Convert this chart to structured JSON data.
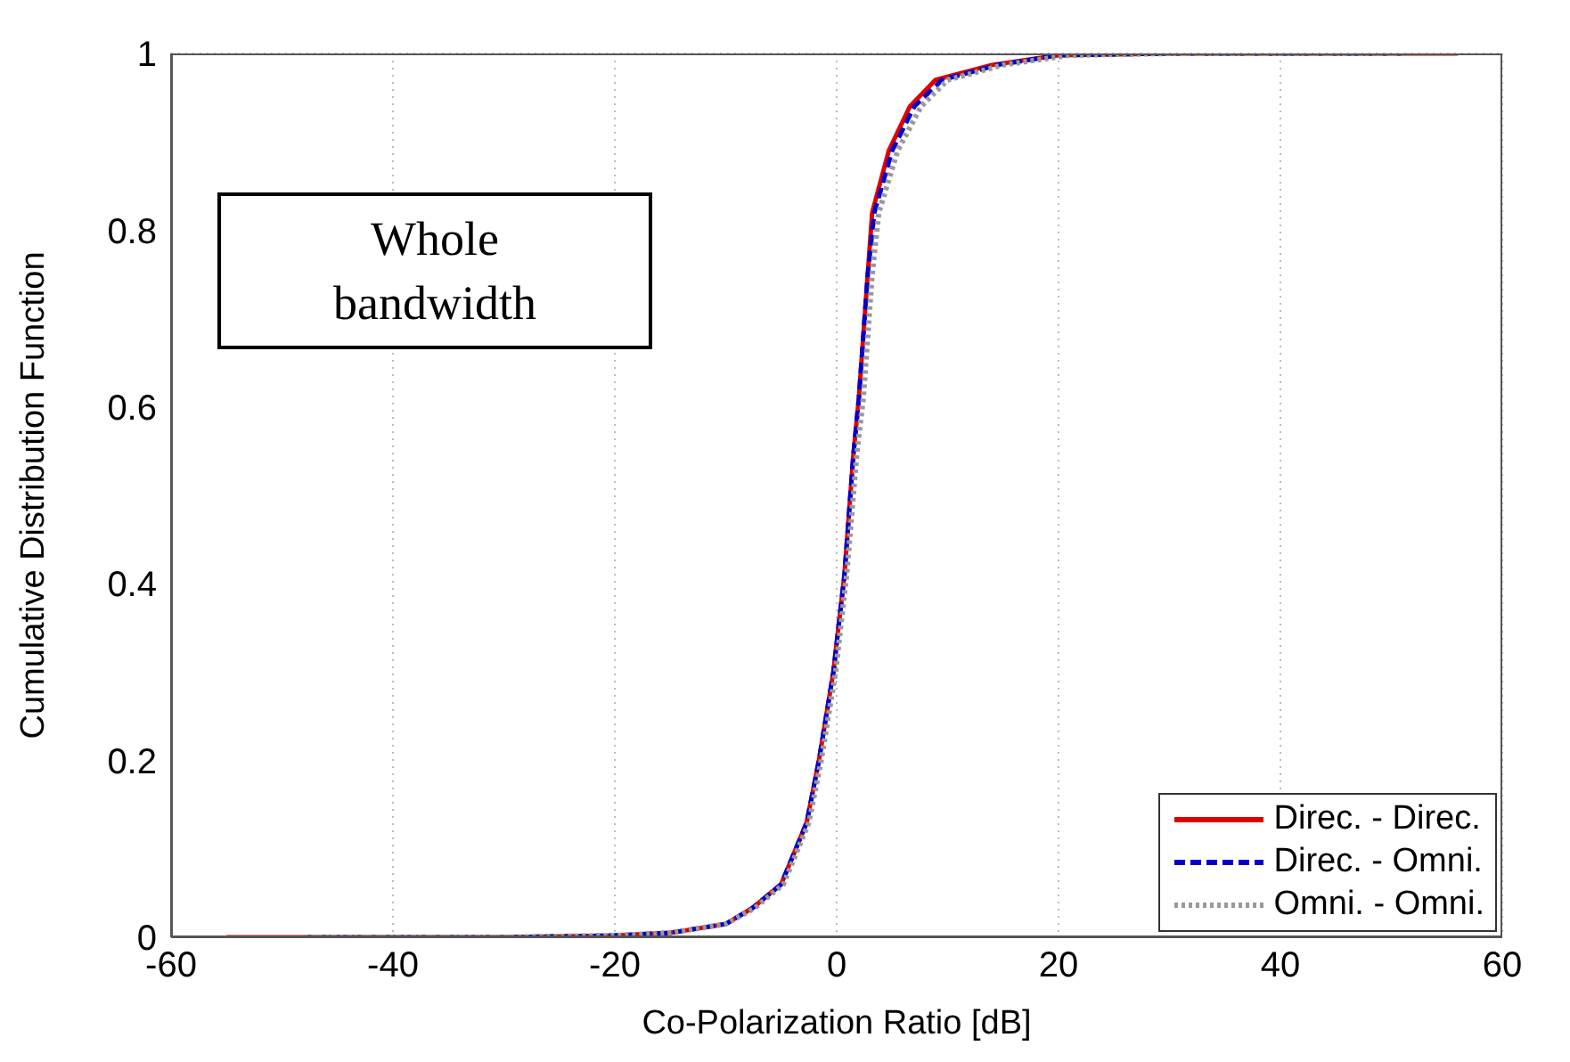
{
  "chart_data": {
    "type": "line",
    "xlabel": "Co-Polarization Ratio [dB]",
    "ylabel": "Cumulative Distribution Function",
    "annotations": [
      "Whole bandwidth"
    ],
    "xlim": [
      -60,
      60
    ],
    "xticks": [
      -60,
      -40,
      -20,
      0,
      20,
      40,
      60
    ],
    "ylim": [
      0,
      1
    ],
    "yticks": [
      0,
      0.2,
      0.4,
      0.6,
      0.8,
      1
    ],
    "grid": true,
    "legend": "bottom right",
    "marker": "none",
    "series": [
      {
        "name": "Direc. - Direc.",
        "color": "#e00000",
        "line_style": "solid",
        "x": [
          -55,
          -30,
          -20,
          -15,
          -10,
          -7.6,
          -5,
          -2.7,
          -1.6,
          -0.3,
          0.7,
          1.5,
          2,
          2.8,
          3.2,
          4.7,
          6.6,
          8.9,
          14,
          20,
          30,
          56
        ],
        "values": [
          0,
          0,
          0.002,
          0.005,
          0.015,
          0.033,
          0.06,
          0.13,
          0.2,
          0.3,
          0.41,
          0.545,
          0.61,
          0.75,
          0.82,
          0.89,
          0.94,
          0.97,
          0.987,
          0.998,
          1,
          1
        ]
      },
      {
        "name": "Direc. - Omni.",
        "color": "#0000cc",
        "line_style": "dashed",
        "x": [
          -48,
          -30,
          -20,
          -15,
          -10,
          -7.6,
          -5,
          -2.7,
          -1.6,
          -0.3,
          0.7,
          1.5,
          2,
          2.8,
          3.4,
          5,
          7,
          9.5,
          14.5,
          20,
          30,
          51
        ],
        "values": [
          0,
          0,
          0.002,
          0.005,
          0.015,
          0.033,
          0.06,
          0.13,
          0.2,
          0.3,
          0.41,
          0.545,
          0.61,
          0.75,
          0.82,
          0.89,
          0.94,
          0.97,
          0.987,
          0.998,
          1,
          1
        ]
      },
      {
        "name": "Omni. - Omni.",
        "color": "#999999",
        "line_style": "dotted",
        "x": [
          -48,
          -30,
          -20,
          -15,
          -10,
          -7.4,
          -4.8,
          -2.5,
          -1.4,
          -0.1,
          0.9,
          1.8,
          2.4,
          3.2,
          3.8,
          5.5,
          7.6,
          10,
          15,
          21,
          30,
          51
        ],
        "values": [
          0,
          0,
          0.002,
          0.005,
          0.015,
          0.033,
          0.06,
          0.13,
          0.2,
          0.3,
          0.41,
          0.545,
          0.61,
          0.75,
          0.82,
          0.89,
          0.94,
          0.97,
          0.987,
          0.998,
          1,
          1
        ]
      }
    ]
  }
}
